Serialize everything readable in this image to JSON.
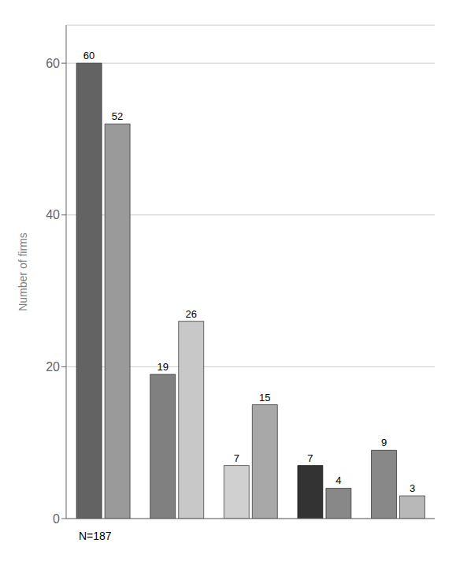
{
  "chart_data": {
    "type": "bar",
    "categories": [
      null,
      null,
      null,
      null,
      null
    ],
    "series": [
      {
        "colors": [
          "#636363",
          "#808080",
          "#d0d0d0",
          "#333333",
          "#888888"
        ],
        "values": [
          60,
          19,
          7,
          7,
          9
        ]
      },
      {
        "colors": [
          "#9a9a9a",
          "#c8c8c8",
          "#a8a8a8",
          "#888888",
          "#b8b8b8"
        ],
        "values": [
          52,
          26,
          15,
          4,
          3
        ]
      }
    ],
    "ylabel": "Number of firms",
    "ylim": [
      0,
      65
    ],
    "yticks": [
      0,
      20,
      40,
      60
    ],
    "grid": true,
    "data_labels": true,
    "tick_labels": "y",
    "annotations": [
      "N=187"
    ]
  }
}
